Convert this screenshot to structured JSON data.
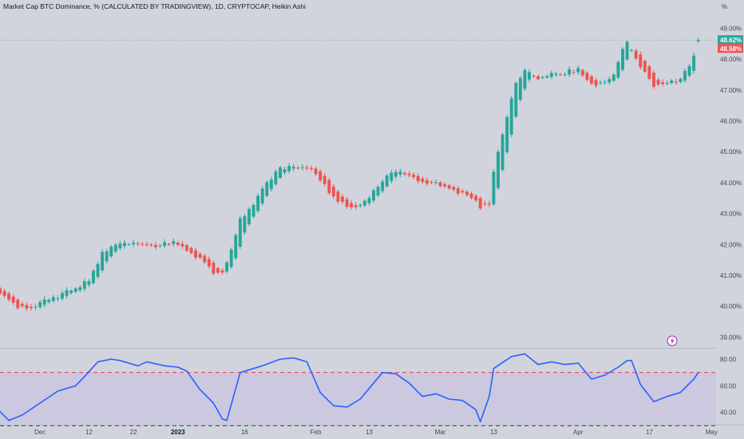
{
  "header": {
    "title": "Market Cap BTC Dominance, % (CALCULATED BY TRADINGVIEW), 1D, CRYPTOCAP, Heikin Ashi"
  },
  "price_scale": {
    "unit_label": "%",
    "current_close": "48.62%",
    "current_open": "48.58%"
  },
  "colors": {
    "up": "#26a69a",
    "down": "#ef5350",
    "rsi_line": "#2962ff",
    "rsi_band_fill": "#c9c3df",
    "upper_level": "#f23645",
    "lower_level": "#1b5e20",
    "background": "#d1d4dc"
  },
  "icons": {
    "alert": "lightning-bolt-icon"
  },
  "chart_data": [
    {
      "type": "candlestick",
      "style": "Heikin Ashi",
      "timeframe": "1D",
      "y_unit": "%",
      "ylim": [
        38.7,
        49.4
      ],
      "y_ticks": [
        39,
        40,
        41,
        42,
        43,
        44,
        45,
        46,
        47,
        48,
        49
      ],
      "y_tick_labels": [
        "39.00%",
        "40.00%",
        "41.00%",
        "42.00%",
        "43.00%",
        "44.00%",
        "45.00%",
        "46.00%",
        "47.00%",
        "48.00%",
        "49.00%"
      ],
      "x_range": [
        "2022-11-22",
        "2023-05-02"
      ],
      "x_ticks": [
        {
          "date": "2022-12-01",
          "label": "Dec",
          "bold": false
        },
        {
          "date": "2022-12-12",
          "label": "12",
          "bold": false
        },
        {
          "date": "2022-12-22",
          "label": "22",
          "bold": false
        },
        {
          "date": "2023-01-01",
          "label": "2023",
          "bold": true
        },
        {
          "date": "2023-01-16",
          "label": "16",
          "bold": false
        },
        {
          "date": "2023-02-01",
          "label": "Feb",
          "bold": false
        },
        {
          "date": "2023-02-13",
          "label": "13",
          "bold": false
        },
        {
          "date": "2023-03-01",
          "label": "Mar",
          "bold": false
        },
        {
          "date": "2023-03-13",
          "label": "13",
          "bold": false
        },
        {
          "date": "2023-04-01",
          "label": "Apr",
          "bold": false
        },
        {
          "date": "2023-04-17",
          "label": "17",
          "bold": false
        },
        {
          "date": "2023-05-01",
          "label": "May",
          "bold": false
        }
      ],
      "close_anchors": [
        [
          "2022-11-21",
          40.55
        ],
        [
          "2022-11-23",
          40.3
        ],
        [
          "2022-11-26",
          39.95
        ],
        [
          "2022-11-29",
          40.0
        ],
        [
          "2022-12-03",
          40.2
        ],
        [
          "2022-12-07",
          40.45
        ],
        [
          "2022-12-10",
          40.65
        ],
        [
          "2022-12-12",
          40.85
        ],
        [
          "2022-12-15",
          41.7
        ],
        [
          "2022-12-17",
          41.95
        ],
        [
          "2022-12-21",
          42.0
        ],
        [
          "2022-12-25",
          41.95
        ],
        [
          "2022-12-29",
          42.0
        ],
        [
          "2022-12-31",
          42.05
        ],
        [
          "2023-01-03",
          41.8
        ],
        [
          "2023-01-06",
          41.55
        ],
        [
          "2023-01-09",
          41.1
        ],
        [
          "2023-01-11",
          41.05
        ],
        [
          "2023-01-12",
          41.4
        ],
        [
          "2023-01-15",
          42.8
        ],
        [
          "2023-01-18",
          43.3
        ],
        [
          "2023-01-21",
          44.0
        ],
        [
          "2023-01-24",
          44.5
        ],
        [
          "2023-01-28",
          44.45
        ],
        [
          "2023-01-31",
          44.4
        ],
        [
          "2023-02-02",
          44.1
        ],
        [
          "2023-02-05",
          43.5
        ],
        [
          "2023-02-08",
          43.25
        ],
        [
          "2023-02-11",
          43.3
        ],
        [
          "2023-02-13",
          43.55
        ],
        [
          "2023-02-17",
          44.25
        ],
        [
          "2023-02-20",
          44.3
        ],
        [
          "2023-02-24",
          44.1
        ],
        [
          "2023-02-28",
          43.95
        ],
        [
          "2023-03-03",
          43.8
        ],
        [
          "2023-03-06",
          43.65
        ],
        [
          "2023-03-09",
          43.45
        ],
        [
          "2023-03-10",
          43.15
        ],
        [
          "2023-03-12",
          43.35
        ],
        [
          "2023-03-13",
          44.4
        ],
        [
          "2023-03-16",
          46.1
        ],
        [
          "2023-03-18",
          47.25
        ],
        [
          "2023-03-20",
          47.6
        ],
        [
          "2023-03-23",
          47.35
        ],
        [
          "2023-03-26",
          47.5
        ],
        [
          "2023-03-28",
          47.5
        ],
        [
          "2023-03-30",
          47.6
        ],
        [
          "2023-04-01",
          47.65
        ],
        [
          "2023-04-03",
          47.35
        ],
        [
          "2023-04-05",
          47.1
        ],
        [
          "2023-04-07",
          47.3
        ],
        [
          "2023-04-09",
          47.5
        ],
        [
          "2023-04-11",
          48.35
        ],
        [
          "2023-04-12",
          48.55
        ],
        [
          "2023-04-14",
          48.0
        ],
        [
          "2023-04-16",
          47.6
        ],
        [
          "2023-04-18",
          47.15
        ],
        [
          "2023-04-20",
          47.25
        ],
        [
          "2023-04-24",
          47.35
        ],
        [
          "2023-04-27",
          48.05
        ],
        [
          "2023-04-28",
          48.62
        ]
      ],
      "last_close": 48.62,
      "last_open": 48.58
    },
    {
      "type": "line",
      "indicator": "RSI",
      "ylim": [
        32,
        86
      ],
      "y_ticks": [
        40,
        60,
        80
      ],
      "y_tick_labels": [
        "40.00",
        "60.00",
        "80.00"
      ],
      "levels": {
        "upper": 70,
        "lower": 30
      },
      "points": [
        [
          "2022-11-21",
          44
        ],
        [
          "2022-11-24",
          34
        ],
        [
          "2022-11-27",
          38
        ],
        [
          "2022-12-01",
          47
        ],
        [
          "2022-12-05",
          56
        ],
        [
          "2022-12-09",
          60
        ],
        [
          "2022-12-11",
          67
        ],
        [
          "2022-12-14",
          78
        ],
        [
          "2022-12-17",
          80
        ],
        [
          "2022-12-19",
          79
        ],
        [
          "2022-12-23",
          75
        ],
        [
          "2022-12-25",
          78
        ],
        [
          "2022-12-29",
          75
        ],
        [
          "2023-01-01",
          74
        ],
        [
          "2023-01-03",
          71
        ],
        [
          "2023-01-06",
          57
        ],
        [
          "2023-01-09",
          47
        ],
        [
          "2023-01-11",
          35
        ],
        [
          "2023-01-12",
          34
        ],
        [
          "2023-01-15",
          70
        ],
        [
          "2023-01-20",
          75
        ],
        [
          "2023-01-24",
          80
        ],
        [
          "2023-01-27",
          81
        ],
        [
          "2023-01-30",
          78
        ],
        [
          "2023-02-02",
          55
        ],
        [
          "2023-02-05",
          45
        ],
        [
          "2023-02-08",
          44
        ],
        [
          "2023-02-11",
          50
        ],
        [
          "2023-02-13",
          58
        ],
        [
          "2023-02-16",
          70
        ],
        [
          "2023-02-19",
          69
        ],
        [
          "2023-02-22",
          62
        ],
        [
          "2023-02-25",
          52
        ],
        [
          "2023-02-28",
          54
        ],
        [
          "2023-03-03",
          50
        ],
        [
          "2023-03-06",
          49
        ],
        [
          "2023-03-09",
          42
        ],
        [
          "2023-03-10",
          33
        ],
        [
          "2023-03-12",
          52
        ],
        [
          "2023-03-13",
          73
        ],
        [
          "2023-03-17",
          82
        ],
        [
          "2023-03-20",
          84
        ],
        [
          "2023-03-23",
          76
        ],
        [
          "2023-03-26",
          78
        ],
        [
          "2023-03-29",
          76
        ],
        [
          "2023-04-01",
          77
        ],
        [
          "2023-04-04",
          65
        ],
        [
          "2023-04-07",
          68
        ],
        [
          "2023-04-10",
          74
        ],
        [
          "2023-04-12",
          79
        ],
        [
          "2023-04-13",
          79
        ],
        [
          "2023-04-15",
          61
        ],
        [
          "2023-04-18",
          48
        ],
        [
          "2023-04-21",
          52
        ],
        [
          "2023-04-24",
          55
        ],
        [
          "2023-04-27",
          65
        ],
        [
          "2023-04-28",
          70
        ]
      ]
    }
  ]
}
